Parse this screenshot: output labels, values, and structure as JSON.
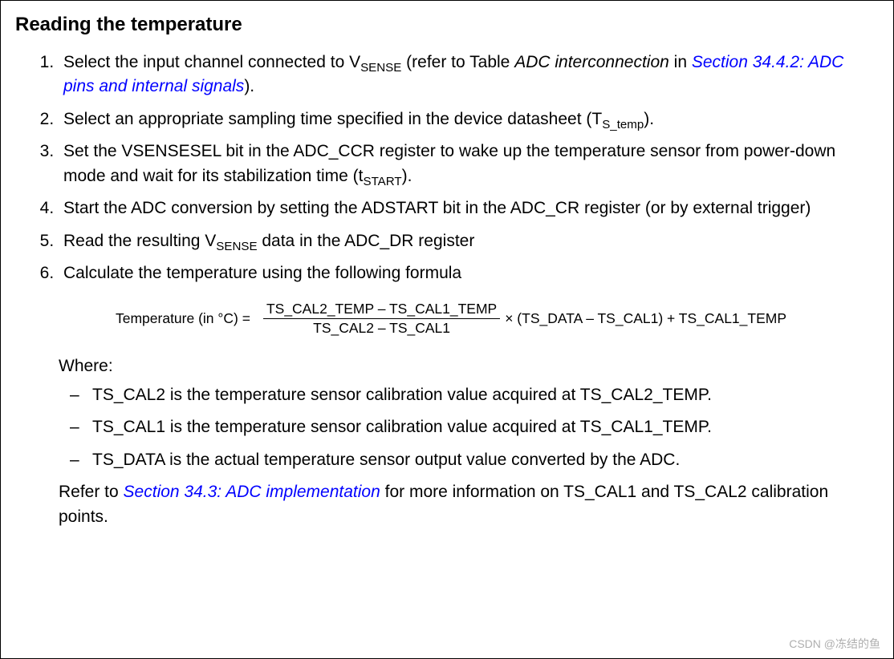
{
  "heading": "Reading the temperature",
  "steps": {
    "s1_a": "Select the input channel connected to V",
    "s1_sub": "SENSE",
    "s1_b": " (refer to Table ",
    "s1_italic": "ADC interconnection",
    "s1_c": " in ",
    "s1_link": "Section 34.4.2: ADC pins and internal signals",
    "s1_d": ").",
    "s2_a": "Select an appropriate sampling time specified in the device datasheet (T",
    "s2_sub": "S_temp",
    "s2_b": ").",
    "s3_a": "Set the VSENSESEL bit in the ADC_CCR register to wake up the temperature sensor from power-down mode and wait for its stabilization time (t",
    "s3_sub": "START",
    "s3_b": ").",
    "s4": "Start the ADC conversion by setting the ADSTART bit in the ADC_CR register (or by external trigger)",
    "s5_a": "Read the resulting V",
    "s5_sub": "SENSE",
    "s5_b": " data in the ADC_DR register",
    "s6": "Calculate the temperature using the following formula"
  },
  "formula": {
    "lhs": "Temperature (in °C)  =",
    "frac_num": "TS_CAL2_TEMP – TS_CAL1_TEMP",
    "frac_den": "TS_CAL2 – TS_CAL1",
    "rhs": "× (TS_DATA – TS_CAL1) + TS_CAL1_TEMP"
  },
  "where": {
    "title": "Where:",
    "item1": "TS_CAL2 is the temperature sensor calibration value acquired at TS_CAL2_TEMP.",
    "item2": "TS_CAL1 is the temperature sensor calibration value acquired at TS_CAL1_TEMP.",
    "item3": "TS_DATA is the actual temperature sensor output value converted by the ADC.",
    "refer_a": "Refer to ",
    "refer_link": "Section 34.3: ADC implementation",
    "refer_b": " for more information on TS_CAL1 and TS_CAL2 calibration points."
  },
  "watermark": "CSDN @冻结的鱼"
}
